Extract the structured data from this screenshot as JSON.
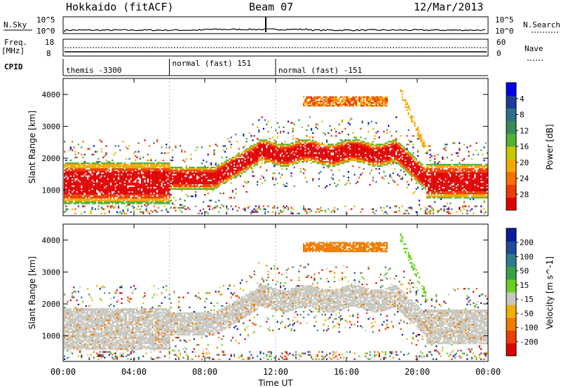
{
  "header": {
    "station": "Hokkaido (fitACF)",
    "beam": "Beam 07",
    "date": "12/Mar/2013"
  },
  "chart_data": [
    {
      "type": "line",
      "name": "noise-panel",
      "left_label": "N.Sky",
      "right_label": "N.Search",
      "left_ticks": [
        "10^5",
        "10^0"
      ],
      "right_ticks": [
        "10^5",
        "10^0"
      ]
    },
    {
      "type": "line",
      "name": "freq-panel",
      "left_label_1": "Freq.",
      "left_label_2": "[MHz]",
      "right_label": "Nave",
      "left_ticks": [
        "18",
        "8"
      ],
      "right_ticks": [
        "60",
        "0"
      ]
    },
    {
      "type": "table",
      "name": "cpid-row",
      "label": "CPID",
      "segments": [
        {
          "start": 0,
          "end": 6,
          "text": "themis -3300"
        },
        {
          "start": 6,
          "end": 12,
          "text": "normal (fast) 151"
        },
        {
          "start": 12,
          "end": 24,
          "text": "normal (fast) -151"
        }
      ]
    },
    {
      "type": "heatmap",
      "name": "power-panel",
      "ylabel": "Slant Range [km]",
      "yticks": [
        1000,
        2000,
        3000,
        4000
      ],
      "ylim": [
        200,
        4500
      ],
      "colorbar_label": "Power [dB]",
      "colorbar_ticks": [
        "4",
        "8",
        "12",
        "16",
        "20",
        "24",
        "28"
      ],
      "colors": [
        "#0000ee",
        "#1c3c9c",
        "#2e6f8a",
        "#3a8a5a",
        "#55b030",
        "#c8c800",
        "#f7a800",
        "#f77000",
        "#ee3a00",
        "#e00000"
      ]
    },
    {
      "type": "heatmap",
      "name": "velocity-panel",
      "ylabel": "Slant Range [km]",
      "yticks": [
        1000,
        2000,
        3000,
        4000
      ],
      "ylim": [
        200,
        4500
      ],
      "colorbar_label": "Velocity [m s^-1]",
      "colorbar_ticks": [
        "200",
        "100",
        "50",
        "15",
        "-15",
        "-50",
        "-100",
        "-200"
      ],
      "colors": [
        "#0a1a9c",
        "#1f4a9a",
        "#2e7a8a",
        "#3aa04a",
        "#6ad020",
        "#c8c8c0",
        "#f0b000",
        "#f07a00",
        "#e84000",
        "#e00000"
      ]
    }
  ],
  "xaxis": {
    "label": "Time UT",
    "ticks": [
      "00:00",
      "04:00",
      "08:00",
      "12:00",
      "16:00",
      "20:00",
      "00:00"
    ]
  }
}
